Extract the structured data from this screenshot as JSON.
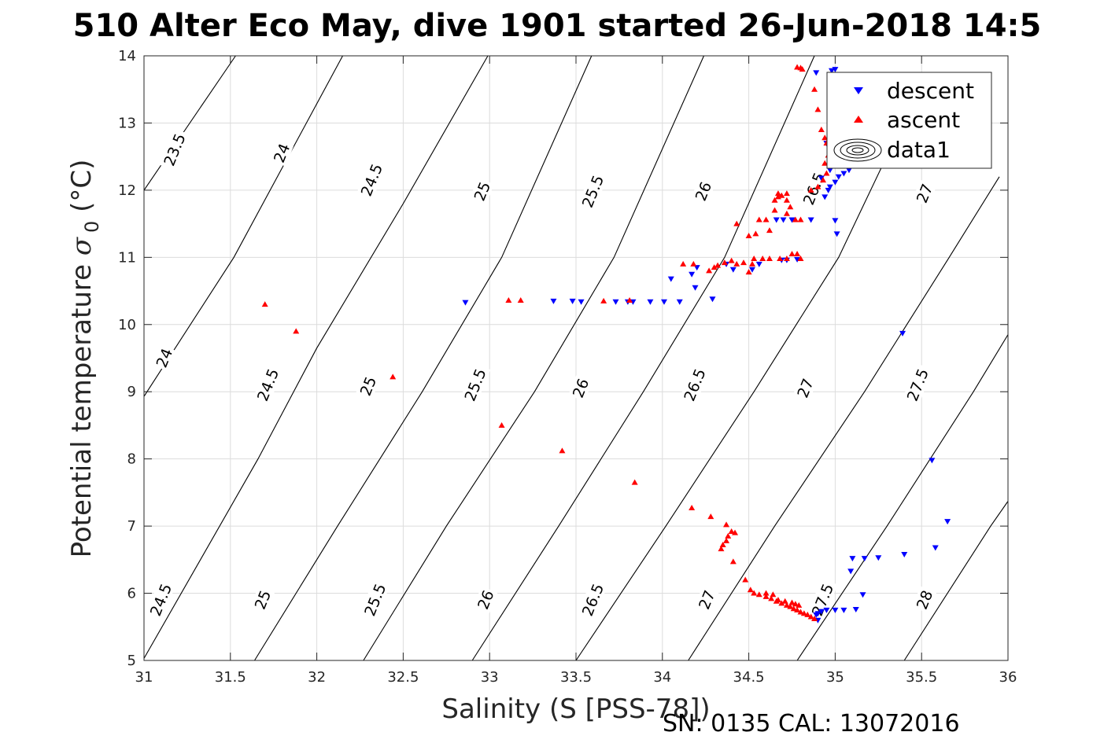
{
  "chart_data": {
    "type": "scatter",
    "title": "510 Alter Eco May, dive 1901 started 26-Jun-2018 14:5",
    "xlabel": "Salinity (S [PSS-78])",
    "ylabel_main": "Potential temperature ",
    "ylabel_symbol": "σ",
    "ylabel_subscript": "0",
    "ylabel_unit": " (°C)",
    "footer": "SN: 0135  CAL: 13072016",
    "xlim": [
      31,
      36
    ],
    "ylim": [
      5,
      14
    ],
    "xticks": [
      31,
      31.5,
      32,
      32.5,
      33,
      33.5,
      34,
      34.5,
      35,
      35.5,
      36
    ],
    "xtick_labels": [
      "31",
      "31.5",
      "32",
      "32.5",
      "33",
      "33.5",
      "34",
      "34.5",
      "35",
      "35.5",
      "36"
    ],
    "yticks": [
      5,
      6,
      7,
      8,
      9,
      10,
      11,
      12,
      13,
      14
    ],
    "ytick_labels": [
      "5",
      "6",
      "7",
      "8",
      "9",
      "10",
      "11",
      "12",
      "13",
      "14"
    ],
    "grid": true,
    "legend_placement": "top-right",
    "contours": [
      {
        "level": "23.5",
        "points": [
          [
            31.0,
            12.0
          ],
          [
            31.53,
            14.0
          ]
        ]
      },
      {
        "level": "24",
        "points": [
          [
            31.0,
            8.93
          ],
          [
            31.52,
            11.0
          ],
          [
            32.15,
            14.0
          ]
        ]
      },
      {
        "level": "24.5",
        "points": [
          [
            31.0,
            5.03
          ],
          [
            31.66,
            8.0
          ],
          [
            32.0,
            9.65
          ],
          [
            32.5,
            11.8
          ],
          [
            32.99,
            14.0
          ]
        ]
      },
      {
        "level": "25",
        "points": [
          [
            31.64,
            5.0
          ],
          [
            32.12,
            7.0
          ],
          [
            32.61,
            9.0
          ],
          [
            33.07,
            11.0
          ],
          [
            33.59,
            14.0
          ]
        ]
      },
      {
        "level": "25.5",
        "points": [
          [
            32.27,
            5.0
          ],
          [
            32.75,
            7.0
          ],
          [
            33.26,
            9.0
          ],
          [
            33.72,
            11.0
          ],
          [
            34.24,
            14.0
          ]
        ]
      },
      {
        "level": "26",
        "points": [
          [
            32.9,
            5.0
          ],
          [
            33.4,
            7.0
          ],
          [
            33.89,
            9.0
          ],
          [
            34.36,
            11.0
          ],
          [
            34.88,
            14.0
          ]
        ]
      },
      {
        "level": "26.5",
        "points": [
          [
            33.5,
            5.0
          ],
          [
            34.02,
            7.0
          ],
          [
            34.53,
            9.0
          ],
          [
            35.02,
            11.0
          ],
          [
            35.52,
            13.7
          ]
        ]
      },
      {
        "level": "27",
        "points": [
          [
            34.15,
            5.0
          ],
          [
            34.65,
            7.0
          ],
          [
            35.17,
            9.0
          ],
          [
            35.66,
            11.0
          ],
          [
            35.95,
            12.2
          ]
        ]
      },
      {
        "level": "27.5",
        "points": [
          [
            34.78,
            5.0
          ],
          [
            35.3,
            7.0
          ],
          [
            35.8,
            9.0
          ],
          [
            36.0,
            9.85
          ]
        ]
      },
      {
        "level": "28",
        "points": [
          [
            35.4,
            5.0
          ],
          [
            35.9,
            7.0
          ],
          [
            36.0,
            7.37
          ]
        ]
      }
    ],
    "contour_labels": [
      {
        "text": "23.5",
        "x": 31.18,
        "y": 12.6,
        "angle": -68
      },
      {
        "text": "24",
        "x": 31.8,
        "y": 12.55,
        "angle": -68
      },
      {
        "text": "24.5",
        "x": 32.32,
        "y": 12.15,
        "angle": -68
      },
      {
        "text": "25",
        "x": 32.96,
        "y": 11.98,
        "angle": -68
      },
      {
        "text": "25.5",
        "x": 33.6,
        "y": 11.98,
        "angle": -68
      },
      {
        "text": "26",
        "x": 34.24,
        "y": 11.98,
        "angle": -68
      },
      {
        "text": "26.5",
        "x": 34.88,
        "y": 12.02,
        "angle": -68
      },
      {
        "text": "27",
        "x": 35.52,
        "y": 11.95,
        "angle": -68
      },
      {
        "text": "24",
        "x": 31.12,
        "y": 9.5,
        "angle": -68
      },
      {
        "text": "24.5",
        "x": 31.72,
        "y": 9.1,
        "angle": -68
      },
      {
        "text": "25",
        "x": 32.3,
        "y": 9.08,
        "angle": -68
      },
      {
        "text": "25.5",
        "x": 32.92,
        "y": 9.1,
        "angle": -68
      },
      {
        "text": "26",
        "x": 33.53,
        "y": 9.05,
        "angle": -68
      },
      {
        "text": "26.5",
        "x": 34.19,
        "y": 9.1,
        "angle": -68
      },
      {
        "text": "27",
        "x": 34.83,
        "y": 9.05,
        "angle": -68
      },
      {
        "text": "27.5",
        "x": 35.48,
        "y": 9.1,
        "angle": -68
      },
      {
        "text": "24.5",
        "x": 31.1,
        "y": 5.9,
        "angle": -68
      },
      {
        "text": "25",
        "x": 31.69,
        "y": 5.9,
        "angle": -68
      },
      {
        "text": "25.5",
        "x": 32.34,
        "y": 5.9,
        "angle": -68
      },
      {
        "text": "26",
        "x": 32.98,
        "y": 5.9,
        "angle": -68
      },
      {
        "text": "26.5",
        "x": 33.6,
        "y": 5.9,
        "angle": -68
      },
      {
        "text": "27",
        "x": 34.26,
        "y": 5.9,
        "angle": -68
      },
      {
        "text": "27.5",
        "x": 34.93,
        "y": 5.9,
        "angle": -68
      },
      {
        "text": "28",
        "x": 35.52,
        "y": 5.9,
        "angle": -68
      }
    ],
    "series": [
      {
        "name": "descent",
        "color": "#0000ff",
        "marker": "triangle-down",
        "points": [
          [
            32.86,
            10.33
          ],
          [
            33.37,
            10.35
          ],
          [
            33.48,
            10.35
          ],
          [
            33.53,
            10.34
          ],
          [
            33.73,
            10.34
          ],
          [
            33.8,
            10.34
          ],
          [
            33.83,
            10.34
          ],
          [
            33.93,
            10.34
          ],
          [
            34.01,
            10.34
          ],
          [
            34.1,
            10.34
          ],
          [
            34.05,
            10.68
          ],
          [
            34.17,
            10.75
          ],
          [
            34.2,
            10.85
          ],
          [
            34.19,
            10.55
          ],
          [
            34.29,
            10.38
          ],
          [
            34.37,
            10.9
          ],
          [
            34.41,
            10.82
          ],
          [
            34.52,
            10.82
          ],
          [
            34.56,
            10.9
          ],
          [
            34.69,
            10.96
          ],
          [
            34.72,
            10.96
          ],
          [
            34.78,
            10.97
          ],
          [
            34.66,
            11.56
          ],
          [
            34.7,
            11.56
          ],
          [
            34.75,
            11.56
          ],
          [
            34.86,
            11.56
          ],
          [
            34.94,
            11.9
          ],
          [
            34.96,
            12.0
          ],
          [
            34.97,
            12.05
          ],
          [
            35.0,
            12.12
          ],
          [
            35.02,
            12.2
          ],
          [
            35.05,
            12.25
          ],
          [
            35.08,
            12.3
          ],
          [
            35.1,
            12.45
          ],
          [
            35.12,
            12.6
          ],
          [
            34.95,
            12.7
          ],
          [
            35.0,
            11.55
          ],
          [
            35.01,
            11.35
          ],
          [
            34.92,
            12.18
          ],
          [
            34.97,
            12.3
          ],
          [
            35.0,
            13.8
          ],
          [
            34.98,
            13.78
          ],
          [
            34.89,
            13.75
          ],
          [
            35.39,
            9.87
          ],
          [
            35.56,
            7.98
          ],
          [
            35.65,
            7.07
          ],
          [
            35.58,
            6.68
          ],
          [
            35.4,
            6.58
          ],
          [
            35.25,
            6.53
          ],
          [
            35.17,
            6.52
          ],
          [
            35.1,
            6.52
          ],
          [
            35.09,
            6.33
          ],
          [
            35.16,
            5.98
          ],
          [
            35.12,
            5.76
          ],
          [
            35.05,
            5.75
          ],
          [
            35.0,
            5.75
          ],
          [
            34.95,
            5.75
          ],
          [
            34.92,
            5.73
          ],
          [
            34.9,
            5.7
          ],
          [
            34.89,
            5.68
          ],
          [
            34.9,
            5.6
          ]
        ]
      },
      {
        "name": "ascent",
        "color": "#ff0000",
        "marker": "triangle-up",
        "points": [
          [
            31.7,
            10.3
          ],
          [
            31.88,
            9.9
          ],
          [
            32.44,
            9.22
          ],
          [
            33.07,
            8.5
          ],
          [
            33.42,
            8.12
          ],
          [
            33.84,
            7.65
          ],
          [
            34.17,
            7.27
          ],
          [
            34.28,
            7.14
          ],
          [
            34.37,
            7.02
          ],
          [
            34.4,
            6.92
          ],
          [
            34.38,
            6.85
          ],
          [
            34.42,
            6.9
          ],
          [
            34.37,
            6.78
          ],
          [
            34.35,
            6.72
          ],
          [
            34.34,
            6.66
          ],
          [
            34.41,
            6.47
          ],
          [
            34.48,
            6.2
          ],
          [
            34.51,
            6.05
          ],
          [
            34.53,
            6.0
          ],
          [
            34.56,
            5.98
          ],
          [
            34.6,
            5.95
          ],
          [
            34.63,
            5.92
          ],
          [
            34.66,
            5.88
          ],
          [
            34.69,
            5.85
          ],
          [
            34.72,
            5.82
          ],
          [
            34.74,
            5.8
          ],
          [
            34.76,
            5.77
          ],
          [
            34.78,
            5.75
          ],
          [
            34.8,
            5.72
          ],
          [
            34.82,
            5.7
          ],
          [
            34.84,
            5.68
          ],
          [
            34.86,
            5.65
          ],
          [
            34.88,
            5.62
          ],
          [
            34.67,
            5.9
          ],
          [
            34.71,
            5.88
          ],
          [
            34.75,
            5.86
          ],
          [
            34.77,
            5.84
          ],
          [
            34.79,
            5.82
          ],
          [
            34.6,
            6.0
          ],
          [
            34.64,
            5.98
          ],
          [
            33.11,
            10.36
          ],
          [
            33.18,
            10.36
          ],
          [
            33.66,
            10.35
          ],
          [
            33.81,
            10.36
          ],
          [
            34.12,
            10.9
          ],
          [
            34.18,
            10.9
          ],
          [
            34.27,
            10.8
          ],
          [
            34.3,
            10.85
          ],
          [
            34.32,
            10.88
          ],
          [
            34.36,
            10.92
          ],
          [
            34.4,
            10.95
          ],
          [
            34.43,
            10.9
          ],
          [
            34.47,
            10.92
          ],
          [
            34.52,
            10.9
          ],
          [
            34.5,
            10.78
          ],
          [
            34.53,
            10.98
          ],
          [
            34.58,
            10.98
          ],
          [
            34.62,
            10.98
          ],
          [
            34.68,
            10.98
          ],
          [
            34.72,
            10.98
          ],
          [
            34.75,
            11.05
          ],
          [
            34.78,
            11.05
          ],
          [
            34.8,
            10.98
          ],
          [
            34.5,
            11.32
          ],
          [
            34.54,
            11.35
          ],
          [
            34.56,
            11.56
          ],
          [
            34.6,
            11.56
          ],
          [
            34.62,
            11.4
          ],
          [
            34.43,
            11.5
          ],
          [
            34.65,
            11.7
          ],
          [
            34.65,
            11.85
          ],
          [
            34.67,
            11.9
          ],
          [
            34.69,
            11.92
          ],
          [
            34.72,
            11.85
          ],
          [
            34.74,
            11.75
          ],
          [
            34.72,
            11.65
          ],
          [
            34.77,
            11.56
          ],
          [
            34.8,
            11.56
          ],
          [
            34.67,
            11.95
          ],
          [
            34.72,
            11.95
          ],
          [
            34.86,
            12.0
          ],
          [
            34.9,
            12.05
          ],
          [
            34.93,
            12.15
          ],
          [
            34.95,
            12.25
          ],
          [
            34.94,
            12.4
          ],
          [
            34.96,
            12.52
          ],
          [
            34.95,
            12.7
          ],
          [
            34.94,
            12.78
          ],
          [
            34.92,
            12.9
          ],
          [
            34.9,
            13.2
          ],
          [
            34.88,
            13.5
          ],
          [
            34.78,
            13.83
          ],
          [
            34.8,
            13.82
          ],
          [
            34.81,
            13.8
          ]
        ]
      }
    ],
    "legend": {
      "entries": [
        {
          "label": "descent",
          "icon": "triangle-down-blue"
        },
        {
          "label": "ascent",
          "icon": "triangle-up-red"
        },
        {
          "label": "data1",
          "icon": "contour-rings"
        }
      ]
    }
  }
}
